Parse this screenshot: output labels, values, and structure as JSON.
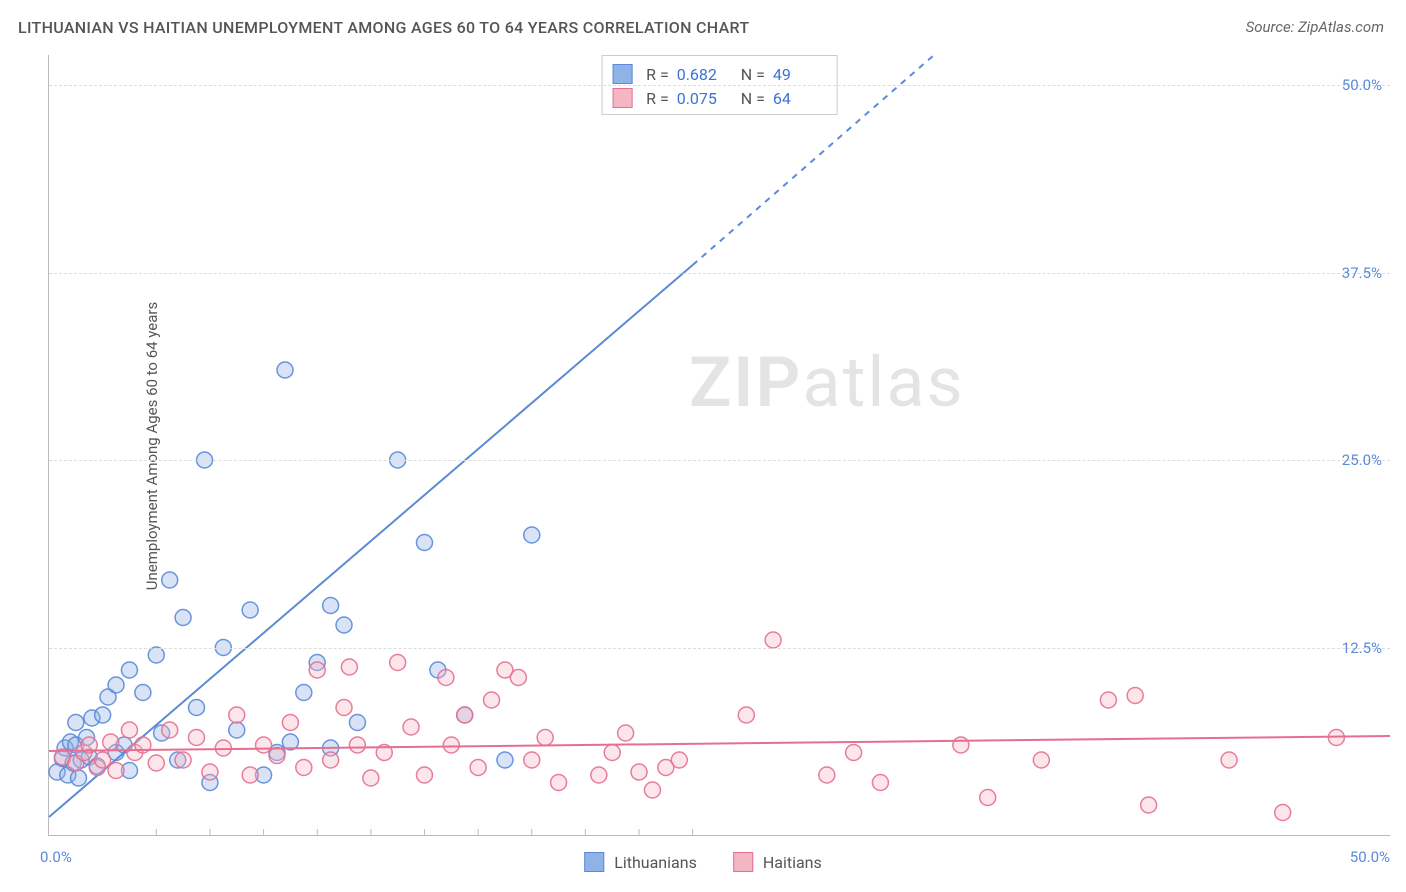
{
  "title": "LITHUANIAN VS HAITIAN UNEMPLOYMENT AMONG AGES 60 TO 64 YEARS CORRELATION CHART",
  "source": "Source: ZipAtlas.com",
  "ylabel": "Unemployment Among Ages 60 to 64 years",
  "watermark_a": "ZIP",
  "watermark_b": "atlas",
  "chart": {
    "type": "scatter",
    "xlim": [
      0,
      50
    ],
    "ylim": [
      0,
      52
    ],
    "x_origin_label": "0.0%",
    "x_max_label": "50.0%",
    "yticks": [
      12.5,
      25.0,
      37.5,
      50.0
    ],
    "ytick_labels": [
      "12.5%",
      "25.0%",
      "37.5%",
      "50.0%"
    ],
    "xticks_minor": [
      4,
      6,
      8,
      10,
      12,
      14,
      16,
      18,
      20,
      22,
      24
    ],
    "grid_color": "#dddddd",
    "axis_color": "#bbbbbb",
    "background_color": "#ffffff",
    "marker_radius": 8,
    "series": [
      {
        "label": "Lithuanians",
        "color_fill": "#8fb3e6",
        "color_stroke": "#5a8ad8",
        "R": "0.682",
        "N": "49",
        "reg": {
          "x0": 0,
          "y0": 1.2,
          "x1": 24,
          "y1": 38,
          "x_dash_to": 33,
          "y_dash_to": 52
        },
        "points": [
          [
            0.3,
            4.2
          ],
          [
            0.5,
            5.1
          ],
          [
            0.6,
            5.8
          ],
          [
            0.7,
            4.0
          ],
          [
            0.8,
            6.2
          ],
          [
            0.9,
            4.8
          ],
          [
            1.0,
            6.0
          ],
          [
            1.0,
            7.5
          ],
          [
            1.1,
            3.8
          ],
          [
            1.2,
            5.0
          ],
          [
            1.4,
            6.5
          ],
          [
            1.5,
            5.2
          ],
          [
            1.6,
            7.8
          ],
          [
            1.8,
            4.6
          ],
          [
            2.0,
            8.0
          ],
          [
            2.2,
            9.2
          ],
          [
            2.5,
            10.0
          ],
          [
            2.5,
            5.5
          ],
          [
            2.8,
            6.0
          ],
          [
            3.0,
            11.0
          ],
          [
            3.0,
            4.3
          ],
          [
            3.5,
            9.5
          ],
          [
            4.0,
            12.0
          ],
          [
            4.2,
            6.8
          ],
          [
            4.5,
            17.0
          ],
          [
            4.8,
            5.0
          ],
          [
            5.0,
            14.5
          ],
          [
            5.5,
            8.5
          ],
          [
            5.8,
            25.0
          ],
          [
            6.0,
            3.5
          ],
          [
            6.5,
            12.5
          ],
          [
            7.0,
            7.0
          ],
          [
            7.5,
            15.0
          ],
          [
            8.0,
            4.0
          ],
          [
            8.5,
            5.5
          ],
          [
            8.8,
            31.0
          ],
          [
            9.0,
            6.2
          ],
          [
            9.5,
            9.5
          ],
          [
            10.0,
            11.5
          ],
          [
            10.5,
            5.8
          ],
          [
            10.5,
            15.3
          ],
          [
            11.0,
            14.0
          ],
          [
            11.5,
            7.5
          ],
          [
            13.0,
            25.0
          ],
          [
            14.0,
            19.5
          ],
          [
            14.5,
            11.0
          ],
          [
            15.5,
            8.0
          ],
          [
            17.0,
            5.0
          ],
          [
            18.0,
            20.0
          ]
        ]
      },
      {
        "label": "Haitians",
        "color_fill": "#f5b6c4",
        "color_stroke": "#e56f91",
        "R": "0.075",
        "N": "64",
        "reg": {
          "x0": 0,
          "y0": 5.6,
          "x1": 50,
          "y1": 6.6
        },
        "points": [
          [
            0.5,
            5.2
          ],
          [
            1.0,
            4.8
          ],
          [
            1.3,
            5.5
          ],
          [
            1.5,
            6.0
          ],
          [
            1.8,
            4.5
          ],
          [
            2.0,
            5.0
          ],
          [
            2.3,
            6.2
          ],
          [
            2.5,
            4.3
          ],
          [
            3.0,
            7.0
          ],
          [
            3.2,
            5.5
          ],
          [
            3.5,
            6.0
          ],
          [
            4.0,
            4.8
          ],
          [
            4.5,
            7.0
          ],
          [
            5.0,
            5.0
          ],
          [
            5.5,
            6.5
          ],
          [
            6.0,
            4.2
          ],
          [
            6.5,
            5.8
          ],
          [
            7.0,
            8.0
          ],
          [
            7.5,
            4.0
          ],
          [
            8.0,
            6.0
          ],
          [
            8.5,
            5.3
          ],
          [
            9.0,
            7.5
          ],
          [
            9.5,
            4.5
          ],
          [
            10.0,
            11.0
          ],
          [
            10.5,
            5.0
          ],
          [
            11.0,
            8.5
          ],
          [
            11.2,
            11.2
          ],
          [
            11.5,
            6.0
          ],
          [
            12.0,
            3.8
          ],
          [
            12.5,
            5.5
          ],
          [
            13.0,
            11.5
          ],
          [
            13.5,
            7.2
          ],
          [
            14.0,
            4.0
          ],
          [
            14.8,
            10.5
          ],
          [
            15.0,
            6.0
          ],
          [
            15.5,
            8.0
          ],
          [
            16.0,
            4.5
          ],
          [
            16.5,
            9.0
          ],
          [
            17.0,
            11.0
          ],
          [
            17.5,
            10.5
          ],
          [
            18.0,
            5.0
          ],
          [
            18.5,
            6.5
          ],
          [
            19.0,
            3.5
          ],
          [
            20.5,
            4.0
          ],
          [
            21.0,
            5.5
          ],
          [
            21.5,
            6.8
          ],
          [
            22.0,
            4.2
          ],
          [
            22.5,
            3.0
          ],
          [
            23.0,
            4.5
          ],
          [
            23.5,
            5.0
          ],
          [
            26.0,
            8.0
          ],
          [
            27.0,
            13.0
          ],
          [
            29.0,
            4.0
          ],
          [
            30.0,
            5.5
          ],
          [
            31.0,
            3.5
          ],
          [
            34.0,
            6.0
          ],
          [
            35.0,
            2.5
          ],
          [
            37.0,
            5.0
          ],
          [
            39.5,
            9.0
          ],
          [
            40.5,
            9.3
          ],
          [
            41.0,
            2.0
          ],
          [
            44.0,
            5.0
          ],
          [
            46.0,
            1.5
          ],
          [
            48.0,
            6.5
          ]
        ]
      }
    ]
  },
  "legend": {
    "r_label": "R =",
    "n_label": "N ="
  }
}
